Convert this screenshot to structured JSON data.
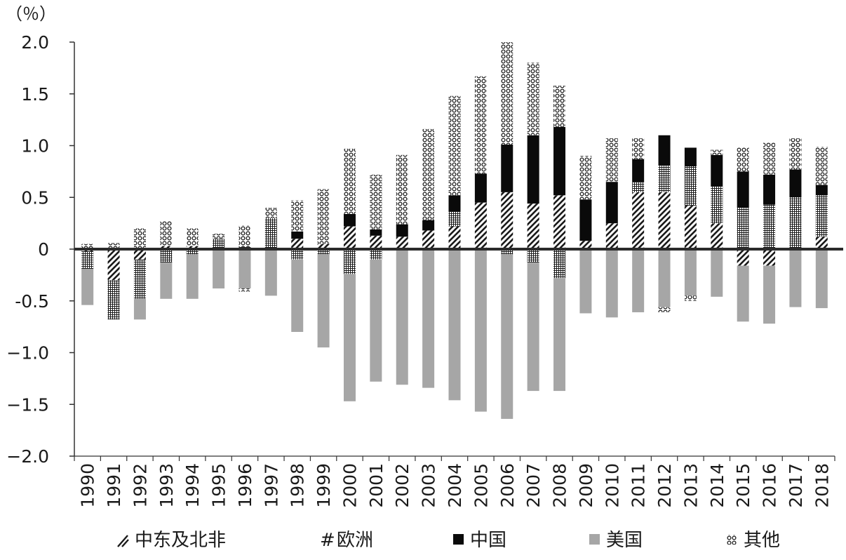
{
  "chart_data": {
    "type": "bar",
    "stacked": true,
    "unit_label": "（％）",
    "ylim": [
      -2.0,
      2.0
    ],
    "yticks": [
      -2.0,
      -1.5,
      -1.0,
      -0.5,
      0,
      0.5,
      1.0,
      1.5,
      2.0
    ],
    "ytick_labels": [
      "−2.0",
      "−1.5",
      "−1.0",
      "-0.5",
      "0",
      "0.5",
      "1.0",
      "1.5",
      "2.0"
    ],
    "grid": false,
    "legend_position": "bottom",
    "categories": [
      "1990",
      "1991",
      "1992",
      "1993",
      "1994",
      "1995",
      "1996",
      "1997",
      "1998",
      "1999",
      "2000",
      "2001",
      "2002",
      "2003",
      "2004",
      "2005",
      "2006",
      "2007",
      "2008",
      "2009",
      "2010",
      "2011",
      "2012",
      "2013",
      "2014",
      "2015",
      "2016",
      "2017",
      "2018"
    ],
    "series": [
      {
        "name": "中东及北非",
        "pattern": "diagonal",
        "color": "#1a1a1a",
        "values": [
          -0.02,
          -0.3,
          -0.1,
          0.03,
          0.03,
          0.0,
          0.0,
          0.0,
          0.1,
          0.05,
          0.22,
          0.13,
          0.12,
          0.18,
          0.22,
          0.45,
          0.55,
          0.44,
          0.52,
          0.08,
          0.25,
          0.55,
          0.55,
          0.42,
          0.25,
          -0.16,
          -0.16,
          0.0,
          0.12
        ]
      },
      {
        "name": "欧洲",
        "pattern": "grid",
        "color": "#1a1a1a",
        "values": [
          -0.17,
          -0.38,
          -0.38,
          -0.13,
          -0.05,
          0.1,
          0.02,
          0.3,
          -0.1,
          -0.05,
          -0.24,
          -0.1,
          0.0,
          0.0,
          0.14,
          0.0,
          -0.05,
          -0.13,
          -0.28,
          0.0,
          0.0,
          0.1,
          0.26,
          0.38,
          0.36,
          0.4,
          0.43,
          0.5,
          0.4
        ]
      },
      {
        "name": "中国",
        "pattern": "solid",
        "color": "#0a0a0a",
        "values": [
          0.0,
          0.0,
          0.0,
          0.0,
          0.0,
          0.0,
          0.0,
          0.0,
          0.07,
          0.0,
          0.12,
          0.06,
          0.12,
          0.1,
          0.16,
          0.28,
          0.46,
          0.66,
          0.66,
          0.4,
          0.4,
          0.22,
          0.29,
          0.18,
          0.3,
          0.35,
          0.29,
          0.27,
          0.1
        ]
      },
      {
        "name": "美国",
        "pattern": "solid",
        "color": "#a6a6a6",
        "values": [
          -0.35,
          0.0,
          -0.2,
          -0.35,
          -0.43,
          -0.38,
          -0.38,
          -0.45,
          -0.7,
          -0.9,
          -1.23,
          -1.18,
          -1.31,
          -1.34,
          -1.46,
          -1.57,
          -1.59,
          -1.24,
          -1.09,
          -0.62,
          -0.66,
          -0.61,
          -0.56,
          -0.45,
          -0.46,
          -0.54,
          -0.56,
          -0.56,
          -0.57
        ]
      },
      {
        "name": "其他",
        "pattern": "dots",
        "color": "#1a1a1a",
        "values": [
          0.05,
          0.06,
          0.2,
          0.24,
          0.17,
          0.05,
          0.21,
          0.1,
          0.3,
          0.53,
          0.63,
          0.53,
          0.67,
          0.88,
          0.96,
          0.94,
          0.99,
          0.7,
          0.4,
          0.42,
          0.42,
          0.2,
          0.0,
          0.0,
          0.05,
          0.23,
          0.31,
          0.3,
          0.37
        ]
      }
    ],
    "extra_negatives": {
      "note_free": true,
      "other_negative": [
        0,
        0,
        0,
        0,
        0,
        0,
        -0.03,
        0,
        0,
        0,
        0,
        0,
        0,
        0,
        0,
        0,
        0,
        0,
        0,
        0,
        0,
        0,
        -0.05,
        -0.05,
        0,
        0,
        0,
        0,
        0
      ]
    }
  }
}
